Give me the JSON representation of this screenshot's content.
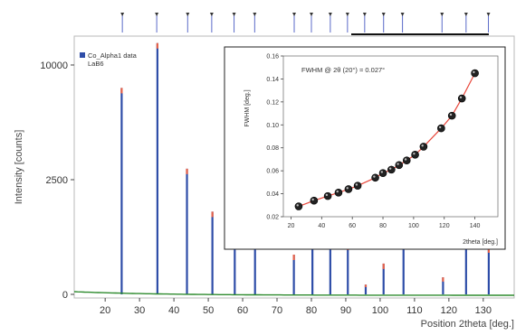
{
  "chart_data": [
    {
      "type": "bar",
      "ylabel": "Intensity [counts]",
      "xlabel": "Position 2theta [deg.]",
      "xlim": [
        11,
        139
      ],
      "x_ticks": [
        20,
        30,
        40,
        50,
        60,
        70,
        80,
        90,
        100,
        110,
        120,
        130
      ],
      "y_ticks": [
        0,
        2500,
        10000
      ],
      "y_scale": "sqrt",
      "legend": {
        "entries": [
          "Co_Alpha1 data",
          "LaB6"
        ],
        "placement": "top-left"
      },
      "colors": {
        "data": "#2e4da8",
        "peak_top": "#e8634a",
        "background": "#2e8b2e",
        "marker": "#5a6ac8"
      },
      "peaks": [
        {
          "x": 24.8,
          "y": 8100
        },
        {
          "x": 35.2,
          "y": 12000
        },
        {
          "x": 43.8,
          "y": 3000
        },
        {
          "x": 51.2,
          "y": 1300
        },
        {
          "x": 57.7,
          "y": 500
        },
        {
          "x": 63.6,
          "y": 500
        },
        {
          "x": 74.9,
          "y": 300
        },
        {
          "x": 80.3,
          "y": 1000
        },
        {
          "x": 85.5,
          "y": 650
        },
        {
          "x": 90.6,
          "y": 470
        },
        {
          "x": 95.8,
          "y": 18
        },
        {
          "x": 101.0,
          "y": 180
        },
        {
          "x": 106.8,
          "y": 700
        },
        {
          "x": 118.3,
          "y": 55
        },
        {
          "x": 125.0,
          "y": 580
        },
        {
          "x": 131.6,
          "y": 420
        }
      ],
      "reference_markers": [
        25,
        35,
        44,
        51,
        57.5,
        63.5,
        75,
        80,
        85.5,
        90.5,
        95.5,
        101,
        106.5,
        118,
        125,
        131.5
      ]
    },
    {
      "type": "line",
      "ylabel": "FWHM [deg.]",
      "xlabel": "2theta [deg.]",
      "annotation": "FWHM @ 2θ (20°) = 0.027°",
      "xlim": [
        15,
        155
      ],
      "ylim": [
        0.02,
        0.16
      ],
      "x_ticks": [
        20,
        40,
        60,
        80,
        100,
        120,
        140
      ],
      "y_ticks": [
        0.02,
        0.04,
        0.06,
        0.08,
        0.1,
        0.12,
        0.14,
        0.16
      ],
      "y_tick_labels": [
        "0.02",
        "0.04",
        "0.06",
        "0.08",
        "0.10",
        "0.12",
        "0.14",
        "0.16"
      ],
      "colors": {
        "line": "#e8463a",
        "point": "#222222"
      },
      "x": [
        25,
        35,
        44,
        51,
        57.5,
        63.5,
        75,
        80,
        85.5,
        90.5,
        95.5,
        101,
        106.5,
        118,
        125,
        131.5,
        140
      ],
      "y": [
        0.029,
        0.034,
        0.038,
        0.041,
        0.044,
        0.047,
        0.054,
        0.058,
        0.061,
        0.065,
        0.069,
        0.074,
        0.081,
        0.097,
        0.108,
        0.123,
        0.145
      ]
    }
  ]
}
